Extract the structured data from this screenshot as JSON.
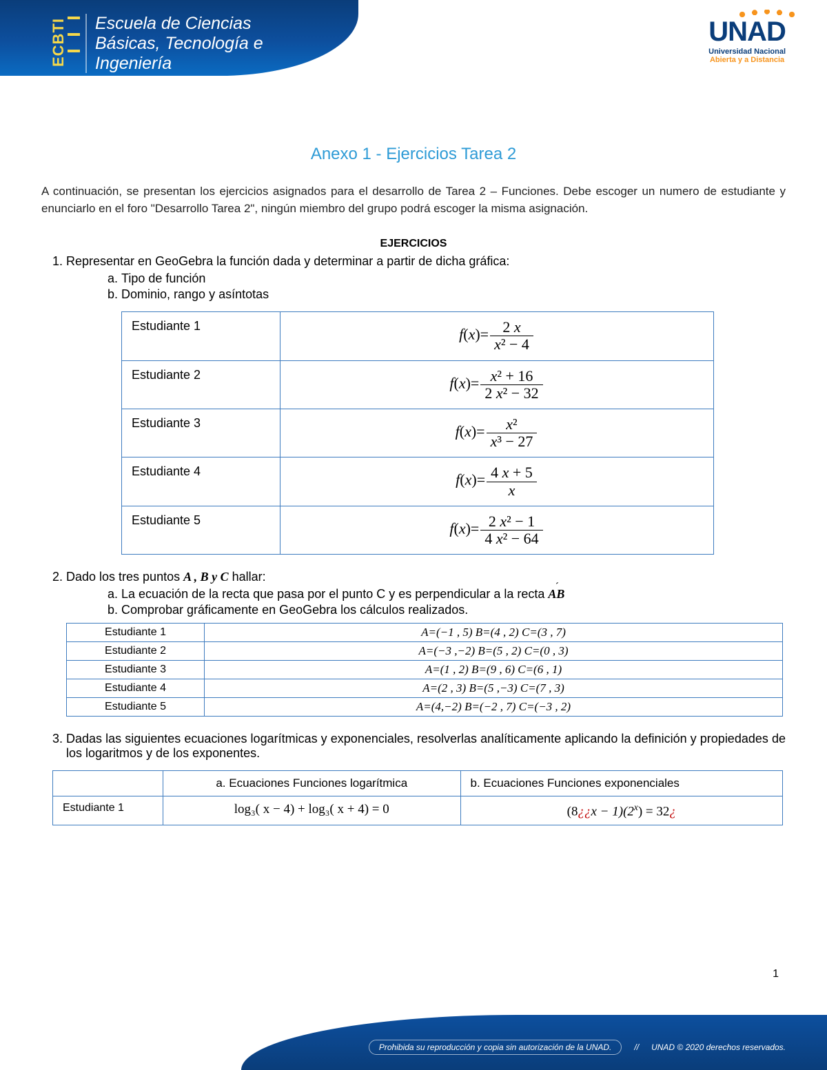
{
  "header": {
    "ecbti": "ECBTI",
    "school_line1": "Escuela de Ciencias",
    "school_line2": "Básicas, Tecnología e",
    "school_line3": "Ingeniería",
    "logo_main": "UNAD",
    "logo_sub1": "Universidad Nacional",
    "logo_sub2": "Abierta y a Distancia"
  },
  "title": "Anexo 1 - Ejercicios Tarea 2",
  "intro": "A continuación, se presentan los ejercicios asignados para el desarrollo de Tarea 2 – Funciones. Debe escoger un numero de estudiante y enunciarlo en el foro \"Desarrollo Tarea 2\", ningún miembro del grupo podrá escoger la misma asignación.",
  "ejercicios_label": "EJERCICIOS",
  "q1": {
    "text": "Representar en GeoGebra la función dada y determinar a partir de dicha gráfica:",
    "a": "Tipo de función",
    "b": "Dominio, rango y asíntotas",
    "rows": [
      {
        "label": "Estudiante 1",
        "num": "2 x",
        "den": "x² − 4"
      },
      {
        "label": "Estudiante 2",
        "num": "x² + 16",
        "den": "2 x² − 32"
      },
      {
        "label": "Estudiante 3",
        "num": "x²",
        "den": "x³ − 27"
      },
      {
        "label": "Estudiante 4",
        "num": "4 x + 5",
        "den": "x"
      },
      {
        "label": "Estudiante 5",
        "num": "2 x² − 1",
        "den": "4 x² − 64"
      }
    ]
  },
  "q2": {
    "text_pre": "Dado los tres puntos ",
    "text_points": "A , B y C",
    "text_post": " hallar:",
    "a_pre": "La ecuación de la recta que pasa por el punto C y es perpendicular a la recta ",
    "a_ab": "AB",
    "b": "Comprobar gráficamente en GeoGebra los cálculos realizados.",
    "rows": [
      {
        "label": "Estudiante 1",
        "val": "A=(−1 , 5) B=(4 , 2) C=(3 , 7)"
      },
      {
        "label": "Estudiante 2",
        "val": "A=(−3 ,−2) B=(5 , 2) C=(0 , 3)"
      },
      {
        "label": "Estudiante 3",
        "val": "A=(1 , 2) B=(9 , 6) C=(6 , 1)"
      },
      {
        "label": "Estudiante 4",
        "val": "A=(2 , 3) B=(5 ,−3) C=(7 , 3)"
      },
      {
        "label": "Estudiante 5",
        "val": "A=(4,−2) B=(−2 , 7) C=(−3 , 2)"
      }
    ]
  },
  "q3": {
    "text": "Dadas las siguientes ecuaciones logarítmicas y exponenciales, resolverlas analíticamente aplicando la definición y propiedades de los logaritmos y de los exponentes.",
    "col_a": "a.   Ecuaciones Funciones logarítmica",
    "col_b": "b.  Ecuaciones Funciones exponenciales",
    "row1_label": "Estudiante 1",
    "row1_a": "log₃( x − 4) + log₃( x + 4) = 0",
    "row1_b_pre": "(8",
    "row1_b_ii1": "¿¿",
    "row1_b_mid1": "x − 1)(2",
    "row1_b_sup": "x",
    "row1_b_mid2": ") = 32",
    "row1_b_ii2": "¿"
  },
  "page_number": "1",
  "footer": {
    "warning": "Prohibida su reproducción y copia sin autorización de la UNAD.",
    "copyright": "UNAD © 2020 derechos reservados."
  },
  "colors": {
    "title": "#2e9bd6",
    "table_border": "#3d7bbf",
    "banner_dark": "#0a3d7a",
    "banner_mid": "#0d4f9e",
    "yellow": "#f6d84a",
    "orange": "#f7941d",
    "red": "#c00000"
  }
}
